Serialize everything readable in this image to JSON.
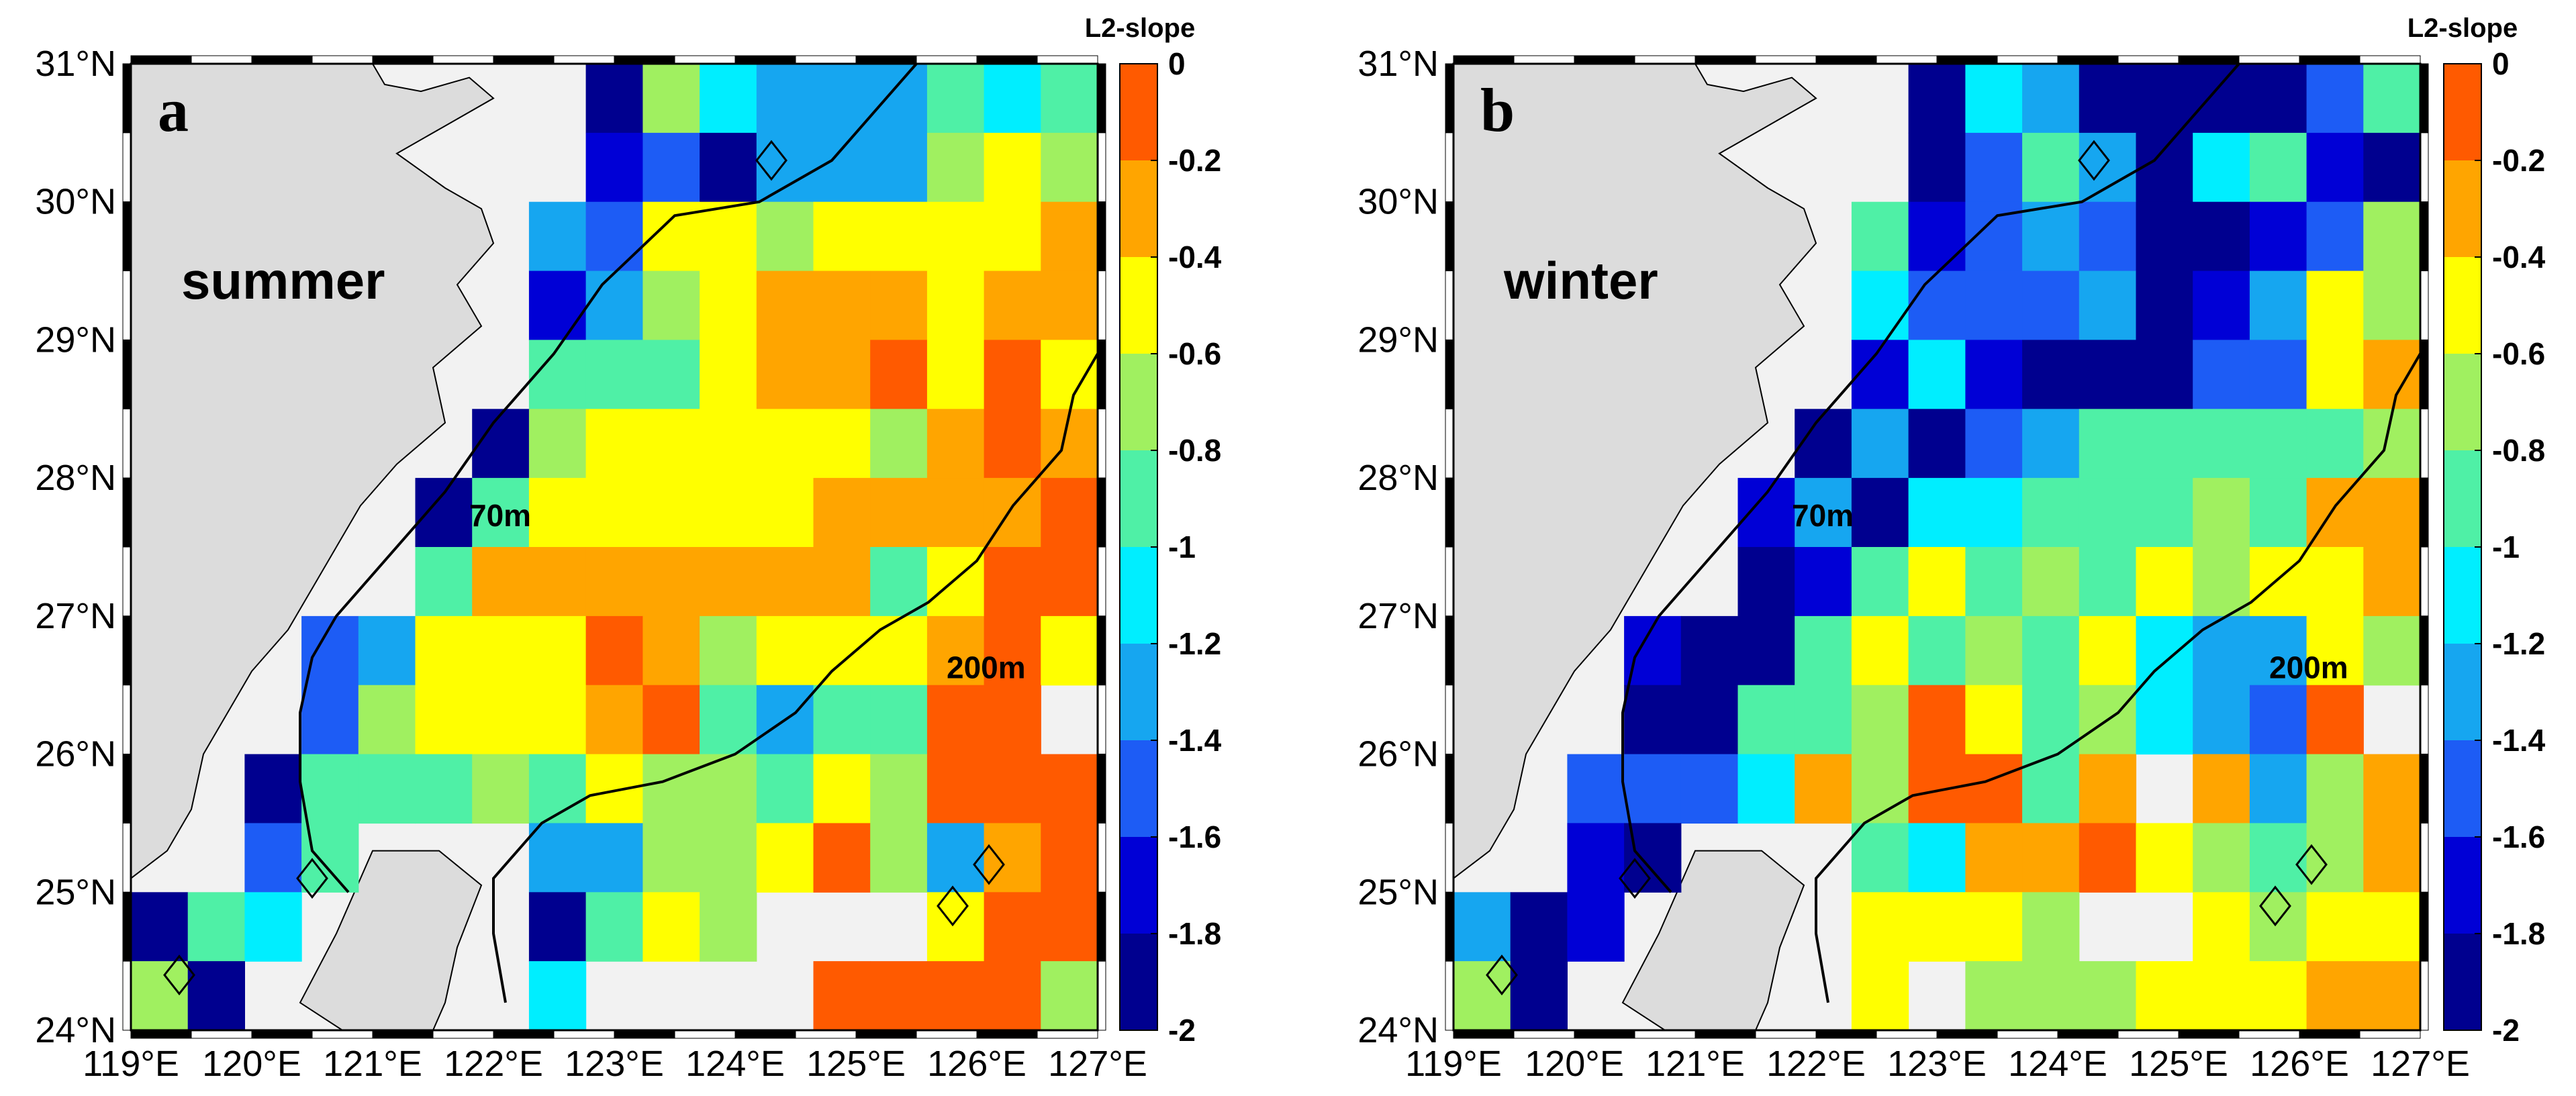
{
  "colorbar": {
    "title": "L2-slope",
    "ticks": [
      "0",
      "-0.2",
      "-0.4",
      "-0.6",
      "-0.8",
      "-1",
      "-1.2",
      "-1.4",
      "-1.6",
      "-1.8",
      "-2"
    ],
    "range": [
      -2,
      0
    ],
    "colors": [
      "#00008f",
      "#0000d6",
      "#1d5cf5",
      "#16a6f0",
      "#00eeff",
      "#4ff0a6",
      "#a0f060",
      "#ffff00",
      "#ffa500",
      "#ff5a00"
    ]
  },
  "contour_labels": {
    "shelf_70": "70m",
    "shelf_200": "200m"
  },
  "panels": [
    {
      "letter": "a",
      "season": "summer",
      "lat_labels": [
        "31°N",
        "30°N",
        "29°N",
        "28°N",
        "27°N",
        "26°N",
        "25°N",
        "24°N"
      ],
      "lon_labels": [
        "119°E",
        "120°E",
        "121°E",
        "122°E",
        "123°E",
        "124°E",
        "125°E",
        "126°E",
        "127°E"
      ],
      "grid_values": [
        [
          null,
          null,
          null,
          null,
          null,
          null,
          null,
          null,
          -1.9,
          -0.7,
          -1.1,
          -1.3,
          -1.3,
          -1.3,
          -0.9,
          -1.1,
          -0.8
        ],
        [
          null,
          null,
          null,
          null,
          null,
          null,
          null,
          null,
          -1.7,
          -1.5,
          -1.9,
          -1.3,
          -1.3,
          -1.3,
          -0.7,
          -0.5,
          -0.7
        ],
        [
          null,
          null,
          null,
          null,
          null,
          null,
          null,
          -1.3,
          -1.5,
          -0.5,
          -0.5,
          -0.7,
          -0.5,
          -0.5,
          -0.5,
          -0.5,
          -0.3
        ],
        [
          null,
          null,
          null,
          null,
          null,
          null,
          null,
          -1.7,
          -1.3,
          -0.7,
          -0.5,
          -0.3,
          -0.3,
          -0.3,
          -0.5,
          -0.3,
          -0.3
        ],
        [
          null,
          null,
          null,
          null,
          null,
          null,
          null,
          -0.9,
          -0.9,
          -0.9,
          -0.5,
          -0.3,
          -0.3,
          -0.1,
          -0.5,
          -0.1,
          -0.5
        ],
        [
          null,
          null,
          null,
          null,
          null,
          null,
          -1.9,
          -0.7,
          -0.5,
          -0.5,
          -0.5,
          -0.5,
          -0.5,
          -0.7,
          -0.3,
          -0.1,
          -0.3
        ],
        [
          null,
          null,
          null,
          null,
          null,
          -1.9,
          -0.9,
          -0.5,
          -0.5,
          -0.5,
          -0.5,
          -0.5,
          -0.3,
          -0.3,
          -0.3,
          -0.3,
          -0.1
        ],
        [
          null,
          null,
          null,
          null,
          null,
          -0.9,
          -0.3,
          -0.3,
          -0.3,
          -0.3,
          -0.3,
          -0.3,
          -0.3,
          -0.9,
          -0.5,
          -0.1,
          -0.1
        ],
        [
          null,
          null,
          null,
          -1.5,
          -1.3,
          -0.5,
          -0.5,
          -0.5,
          -0.1,
          -0.3,
          -0.7,
          -0.5,
          -0.5,
          -0.5,
          -0.3,
          -0.1,
          -0.5
        ],
        [
          null,
          null,
          null,
          -1.5,
          -0.7,
          -0.5,
          -0.5,
          -0.5,
          -0.3,
          -0.1,
          -0.9,
          -1.3,
          -0.9,
          -0.9,
          -0.1,
          -0.1,
          null
        ],
        [
          null,
          null,
          -1.9,
          -0.9,
          -0.9,
          -0.9,
          -0.7,
          -0.9,
          -0.5,
          -0.7,
          -0.7,
          -0.9,
          -0.5,
          -0.7,
          -0.1,
          -0.1,
          -0.1
        ],
        [
          null,
          null,
          -1.5,
          -0.9,
          null,
          null,
          null,
          -1.3,
          -1.3,
          -0.7,
          -0.7,
          -0.5,
          -0.1,
          -0.7,
          -1.3,
          -0.3,
          -0.1
        ],
        [
          -1.9,
          -0.9,
          -1.1,
          null,
          null,
          null,
          null,
          -1.9,
          -0.9,
          -0.5,
          -0.7,
          null,
          null,
          null,
          -0.5,
          -0.1,
          -0.1
        ],
        [
          -0.7,
          -1.9,
          null,
          null,
          null,
          null,
          null,
          -1.1,
          null,
          null,
          null,
          null,
          -0.1,
          -0.1,
          -0.1,
          -0.1,
          -0.7
        ]
      ]
    },
    {
      "letter": "b",
      "season": "winter",
      "lat_labels": [
        "31°N",
        "30°N",
        "29°N",
        "28°N",
        "27°N",
        "26°N",
        "25°N",
        "24°N"
      ],
      "lon_labels": [
        "119°E",
        "120°E",
        "121°E",
        "122°E",
        "123°E",
        "124°E",
        "125°E",
        "126°E",
        "127°E"
      ],
      "grid_values": [
        [
          null,
          null,
          null,
          null,
          null,
          null,
          null,
          null,
          -1.9,
          -1.1,
          -1.3,
          -1.9,
          -1.9,
          -1.9,
          -1.9,
          -1.5,
          -0.9
        ],
        [
          null,
          null,
          null,
          null,
          null,
          null,
          null,
          null,
          -1.9,
          -1.5,
          -0.9,
          -1.3,
          -1.9,
          -1.1,
          -0.9,
          -1.7,
          -1.9
        ],
        [
          null,
          null,
          null,
          null,
          null,
          null,
          null,
          -0.9,
          -1.7,
          -1.5,
          -1.3,
          -1.5,
          -1.9,
          -1.9,
          -1.7,
          -1.5,
          -0.7
        ],
        [
          null,
          null,
          null,
          null,
          null,
          null,
          null,
          -1.1,
          -1.5,
          -1.5,
          -1.5,
          -1.3,
          -1.9,
          -1.7,
          -1.3,
          -0.5,
          -0.7
        ],
        [
          null,
          null,
          null,
          null,
          null,
          null,
          null,
          -1.7,
          -1.1,
          -1.7,
          -1.9,
          -1.9,
          -1.9,
          -1.5,
          -1.5,
          -0.5,
          -0.3
        ],
        [
          null,
          null,
          null,
          null,
          null,
          null,
          -1.9,
          -1.3,
          -1.9,
          -1.5,
          -1.3,
          -0.9,
          -0.9,
          -0.9,
          -0.9,
          -0.9,
          -0.7
        ],
        [
          null,
          null,
          null,
          null,
          null,
          -1.7,
          -1.3,
          -1.9,
          -1.1,
          -1.1,
          -0.9,
          -0.9,
          -0.9,
          -0.7,
          -0.9,
          -0.3,
          -0.3
        ],
        [
          null,
          null,
          null,
          null,
          null,
          -1.9,
          -1.7,
          -0.9,
          -0.5,
          -0.9,
          -0.7,
          -0.9,
          -0.5,
          -0.7,
          -0.5,
          -0.5,
          -0.3
        ],
        [
          null,
          null,
          null,
          -1.7,
          -1.9,
          -1.9,
          -0.9,
          -0.5,
          -0.9,
          -0.7,
          -0.9,
          -0.5,
          -1.1,
          -1.3,
          -1.3,
          -0.5,
          -0.7
        ],
        [
          null,
          null,
          null,
          -1.9,
          -1.9,
          -0.9,
          -0.9,
          -0.7,
          -0.1,
          -0.5,
          -0.9,
          -0.7,
          -1.1,
          -1.3,
          -1.5,
          -0.1,
          null
        ],
        [
          null,
          null,
          -1.5,
          -1.5,
          -1.5,
          -1.1,
          -0.3,
          -0.7,
          -0.1,
          -0.1,
          -0.9,
          -0.3,
          null,
          -0.3,
          -1.3,
          -0.7,
          -0.3
        ],
        [
          null,
          null,
          -1.7,
          -1.9,
          null,
          null,
          null,
          -0.9,
          -1.1,
          -0.3,
          -0.3,
          -0.1,
          -0.5,
          -0.7,
          -0.9,
          -0.7,
          -0.3
        ],
        [
          -1.3,
          -1.9,
          -1.7,
          null,
          null,
          null,
          null,
          -0.5,
          -0.5,
          -0.5,
          -0.7,
          null,
          null,
          -0.5,
          -0.7,
          -0.5,
          -0.5
        ],
        [
          -0.7,
          -1.9,
          null,
          null,
          null,
          null,
          null,
          -0.5,
          null,
          -0.7,
          -0.7,
          -0.7,
          -0.5,
          -0.5,
          -0.5,
          -0.3,
          -0.3
        ]
      ]
    }
  ]
}
